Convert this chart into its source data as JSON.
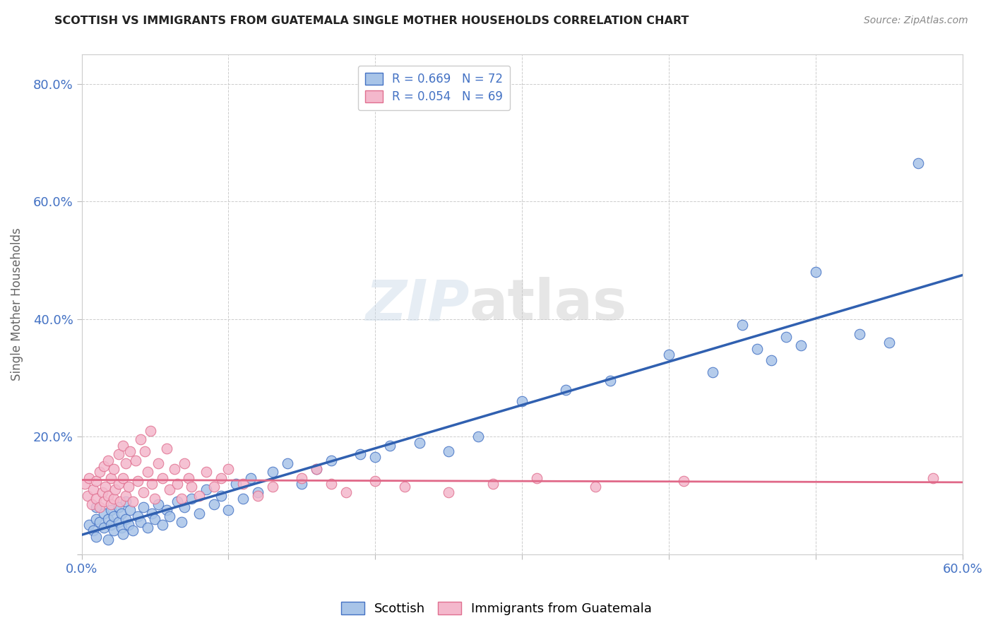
{
  "title": "SCOTTISH VS IMMIGRANTS FROM GUATEMALA SINGLE MOTHER HOUSEHOLDS CORRELATION CHART",
  "source": "Source: ZipAtlas.com",
  "ylabel": "Single Mother Households",
  "xlabel": "",
  "xlim": [
    0.0,
    0.6
  ],
  "ylim": [
    0.0,
    0.85
  ],
  "xtick_positions": [
    0.0,
    0.1,
    0.2,
    0.3,
    0.4,
    0.5,
    0.6
  ],
  "xtick_labels": [
    "0.0%",
    "",
    "",
    "",
    "",
    "",
    "60.0%"
  ],
  "ytick_positions": [
    0.0,
    0.2,
    0.4,
    0.6,
    0.8
  ],
  "ytick_labels": [
    "",
    "20.0%",
    "40.0%",
    "60.0%",
    "80.0%"
  ],
  "color_scottish_fill": "#a8c4e8",
  "color_scottish_edge": "#4472c4",
  "color_guatemala_fill": "#f4b8cc",
  "color_guatemala_edge": "#e07090",
  "color_line_scottish": "#3060b0",
  "color_line_guatemala": "#e06888",
  "watermark_text": "ZIPatlas",
  "scottish_x": [
    0.005,
    0.008,
    0.01,
    0.01,
    0.01,
    0.012,
    0.015,
    0.015,
    0.018,
    0.018,
    0.02,
    0.02,
    0.022,
    0.022,
    0.025,
    0.025,
    0.027,
    0.027,
    0.028,
    0.03,
    0.03,
    0.032,
    0.033,
    0.035,
    0.038,
    0.04,
    0.042,
    0.045,
    0.048,
    0.05,
    0.052,
    0.055,
    0.058,
    0.06,
    0.065,
    0.068,
    0.07,
    0.075,
    0.08,
    0.085,
    0.09,
    0.095,
    0.1,
    0.105,
    0.11,
    0.115,
    0.12,
    0.13,
    0.14,
    0.15,
    0.16,
    0.17,
    0.19,
    0.2,
    0.21,
    0.23,
    0.25,
    0.27,
    0.3,
    0.33,
    0.36,
    0.4,
    0.43,
    0.45,
    0.46,
    0.47,
    0.48,
    0.49,
    0.5,
    0.53,
    0.55,
    0.57
  ],
  "scottish_y": [
    0.05,
    0.04,
    0.06,
    0.08,
    0.03,
    0.055,
    0.045,
    0.07,
    0.06,
    0.025,
    0.05,
    0.075,
    0.04,
    0.065,
    0.055,
    0.08,
    0.045,
    0.07,
    0.035,
    0.06,
    0.09,
    0.05,
    0.075,
    0.04,
    0.065,
    0.055,
    0.08,
    0.045,
    0.07,
    0.06,
    0.085,
    0.05,
    0.075,
    0.065,
    0.09,
    0.055,
    0.08,
    0.095,
    0.07,
    0.11,
    0.085,
    0.1,
    0.075,
    0.12,
    0.095,
    0.13,
    0.105,
    0.14,
    0.155,
    0.12,
    0.145,
    0.16,
    0.17,
    0.165,
    0.185,
    0.19,
    0.175,
    0.2,
    0.26,
    0.28,
    0.295,
    0.34,
    0.31,
    0.39,
    0.35,
    0.33,
    0.37,
    0.355,
    0.48,
    0.375,
    0.36,
    0.665
  ],
  "guatemala_x": [
    0.002,
    0.004,
    0.005,
    0.007,
    0.008,
    0.01,
    0.01,
    0.012,
    0.012,
    0.014,
    0.015,
    0.015,
    0.016,
    0.018,
    0.018,
    0.02,
    0.02,
    0.022,
    0.022,
    0.023,
    0.025,
    0.025,
    0.026,
    0.028,
    0.028,
    0.03,
    0.03,
    0.032,
    0.033,
    0.035,
    0.037,
    0.038,
    0.04,
    0.042,
    0.043,
    0.045,
    0.047,
    0.048,
    0.05,
    0.052,
    0.055,
    0.058,
    0.06,
    0.063,
    0.065,
    0.068,
    0.07,
    0.073,
    0.075,
    0.08,
    0.085,
    0.09,
    0.095,
    0.1,
    0.11,
    0.12,
    0.13,
    0.15,
    0.16,
    0.17,
    0.18,
    0.2,
    0.22,
    0.25,
    0.28,
    0.31,
    0.35,
    0.41,
    0.58
  ],
  "guatemala_y": [
    0.12,
    0.1,
    0.13,
    0.085,
    0.11,
    0.095,
    0.125,
    0.08,
    0.14,
    0.105,
    0.09,
    0.15,
    0.115,
    0.1,
    0.16,
    0.085,
    0.13,
    0.095,
    0.145,
    0.11,
    0.12,
    0.17,
    0.09,
    0.13,
    0.185,
    0.1,
    0.155,
    0.115,
    0.175,
    0.09,
    0.16,
    0.125,
    0.195,
    0.105,
    0.175,
    0.14,
    0.21,
    0.12,
    0.095,
    0.155,
    0.13,
    0.18,
    0.11,
    0.145,
    0.12,
    0.095,
    0.155,
    0.13,
    0.115,
    0.1,
    0.14,
    0.115,
    0.13,
    0.145,
    0.12,
    0.1,
    0.115,
    0.13,
    0.145,
    0.12,
    0.105,
    0.125,
    0.115,
    0.105,
    0.12,
    0.13,
    0.115,
    0.125,
    0.13
  ],
  "background_color": "#ffffff",
  "grid_color": "#c8c8c8",
  "title_color": "#222222",
  "tick_color": "#4472c4",
  "legend_value_color": "#4472c4"
}
